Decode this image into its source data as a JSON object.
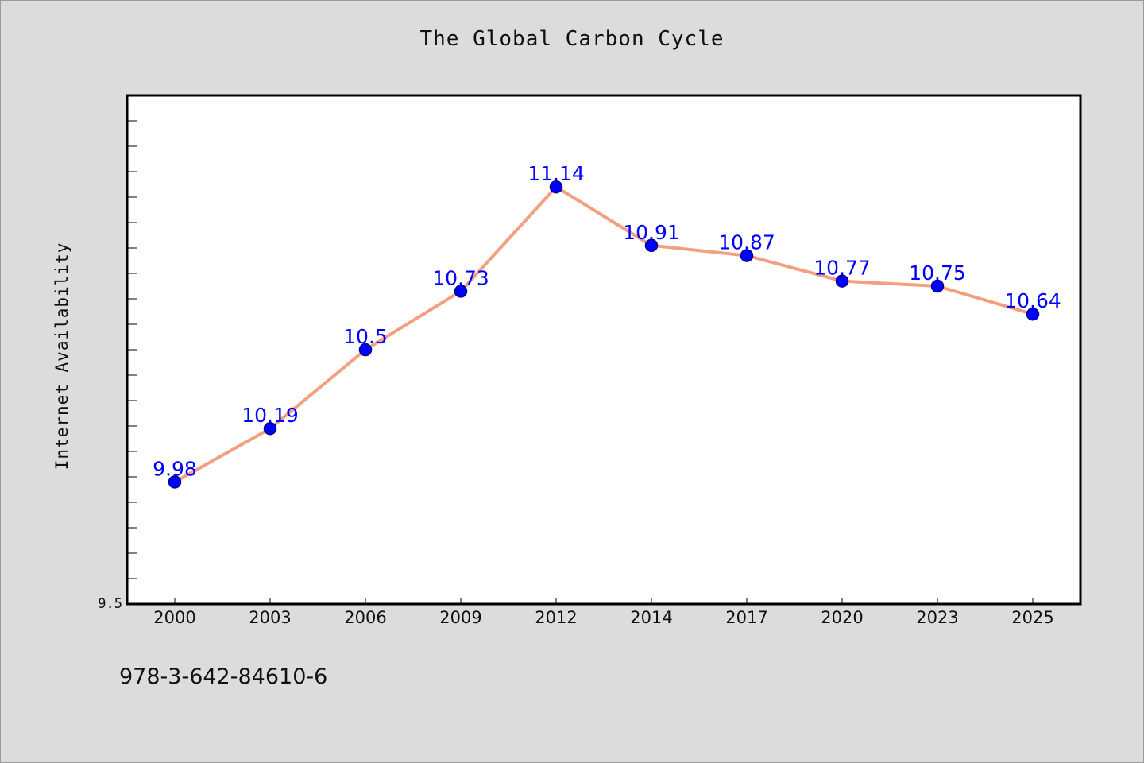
{
  "title": "The Global Carbon Cycle",
  "footer": "978-3-642-84610-6",
  "colors": {
    "background": "#dcdcdc",
    "plot_background": "#ffffff",
    "line": "#f4a07e",
    "marker": "#0000ff",
    "data_label": "#0000ff"
  },
  "chart_data": {
    "type": "line",
    "title": "The Global Carbon Cycle",
    "xlabel": "",
    "ylabel": "Internet Availability",
    "categories": [
      "2000",
      "2003",
      "2006",
      "2009",
      "2012",
      "2014",
      "2017",
      "2020",
      "2023",
      "2025"
    ],
    "series": [
      {
        "values": [
          9.98,
          10.19,
          10.5,
          10.73,
          11.14,
          10.91,
          10.87,
          10.77,
          10.75,
          10.64
        ]
      }
    ],
    "data_labels": [
      "9.98",
      "10.19",
      "10.5",
      "10.73",
      "11.14",
      "10.91",
      "10.87",
      "10.77",
      "10.75",
      "10.64"
    ],
    "ylim": [
      9.5,
      11.5
    ],
    "y_tick_labels": [
      "9.5"
    ],
    "grid": false,
    "legend": "none",
    "markers": true
  }
}
